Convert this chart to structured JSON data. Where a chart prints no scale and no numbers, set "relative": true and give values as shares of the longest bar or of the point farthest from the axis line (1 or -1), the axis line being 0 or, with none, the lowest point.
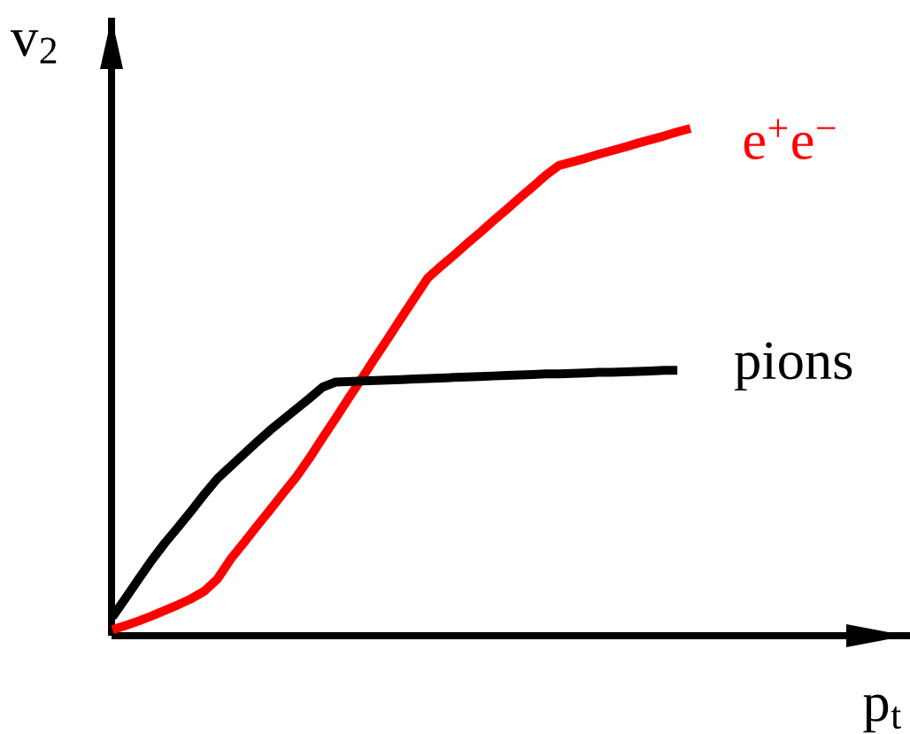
{
  "chart_data": {
    "type": "line",
    "relative": true,
    "xlabel": "p$_{t}$",
    "ylabel": "v$_{2}$",
    "tick_labels": false,
    "categories": [
      null,
      null,
      null,
      null,
      null,
      null,
      null,
      null,
      null,
      null,
      null,
      null,
      null,
      null,
      null,
      null,
      null,
      null,
      null,
      null,
      null,
      null,
      null,
      null,
      null,
      null,
      null,
      null,
      null,
      null,
      null,
      null,
      null,
      null,
      null,
      null,
      null,
      null,
      null,
      null,
      null,
      null,
      null,
      null,
      null
    ],
    "series": [
      {
        "name": "e$^{+}$e$^{−}$",
        "color": "#ff0000",
        "values": [
          0.012,
          0.02,
          0.029,
          0.039,
          0.05,
          0.061,
          0.073,
          0.088,
          0.112,
          0.151,
          0.183,
          0.216,
          0.248,
          0.281,
          0.313,
          0.35,
          0.39,
          0.429,
          0.469,
          0.508,
          0.548,
          0.587,
          0.627,
          0.666,
          0.705,
          0.728,
          0.75,
          0.773,
          0.795,
          0.818,
          0.84,
          0.863,
          0.885,
          0.908,
          0.927,
          0.934,
          0.941,
          0.949,
          0.956,
          0.963,
          0.971,
          0.978,
          0.985,
          0.993,
          1.0
        ]
      },
      {
        "name": "pions",
        "color": "#000000",
        "values": [
          0.037,
          0.074,
          0.112,
          0.149,
          0.183,
          0.214,
          0.246,
          0.279,
          0.31,
          0.334,
          0.358,
          0.382,
          0.405,
          0.426,
          0.447,
          0.468,
          0.49,
          0.5,
          0.501,
          0.502,
          0.503,
          0.504,
          0.505,
          0.506,
          0.507,
          0.508,
          0.509,
          0.51,
          0.511,
          0.512,
          0.513,
          0.514,
          0.515,
          0.516,
          0.516,
          0.517,
          0.518,
          0.519,
          0.519,
          0.52,
          0.521,
          0.522,
          0.523,
          0.523,
          null
        ]
      }
    ]
  }
}
